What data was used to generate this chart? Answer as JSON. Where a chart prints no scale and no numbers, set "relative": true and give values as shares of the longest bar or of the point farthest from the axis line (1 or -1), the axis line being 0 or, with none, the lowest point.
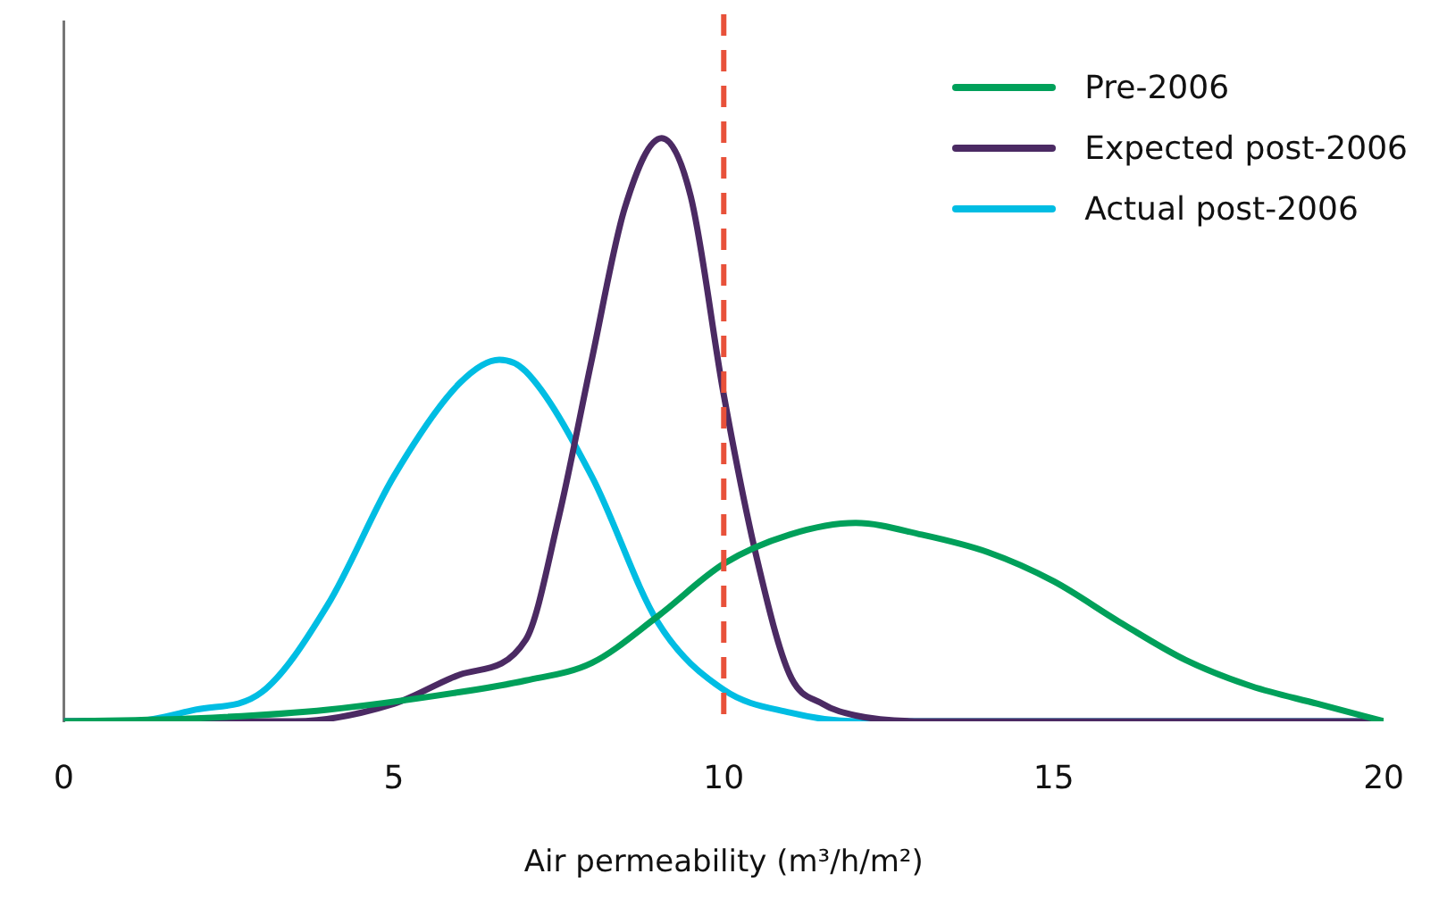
{
  "chart_data": {
    "type": "line",
    "relative": true,
    "xlabel": "Air permeability (m³/h/m²)",
    "xlim": [
      0,
      20
    ],
    "xticks": [
      0,
      5,
      10,
      15,
      20
    ],
    "tick_labels": "x",
    "grid": false,
    "legend": "top right",
    "marker": "none",
    "line_style": "solid",
    "ref_lines": [
      {
        "axis": "x",
        "value": 10,
        "color": "#e8513a",
        "line_style": "dashed"
      }
    ],
    "series": [
      {
        "name": "Pre-2006",
        "color": "#00a05a",
        "x": [
          0,
          2,
          4,
          6,
          7,
          8,
          9,
          10,
          11,
          12,
          13,
          14,
          15,
          16,
          17,
          18,
          19,
          20
        ],
        "values": [
          0,
          0.005,
          0.02,
          0.05,
          0.07,
          0.1,
          0.18,
          0.27,
          0.32,
          0.34,
          0.32,
          0.29,
          0.24,
          0.17,
          0.105,
          0.06,
          0.03,
          0
        ]
      },
      {
        "name": "Expected post-2006",
        "color": "#4b2a63",
        "x": [
          0,
          2,
          3.5,
          5,
          6,
          7,
          7.5,
          8,
          8.5,
          9.06,
          9.5,
          10,
          10.5,
          11,
          11.5,
          12,
          13,
          20
        ],
        "values": [
          0,
          0,
          0,
          0.03,
          0.08,
          0.14,
          0.35,
          0.62,
          0.88,
          1,
          0.9,
          0.56,
          0.28,
          0.08,
          0.03,
          0.01,
          0,
          0
        ]
      },
      {
        "name": "Actual post-2006",
        "color": "#00bde3",
        "x": [
          0,
          1,
          2,
          3,
          4,
          5,
          6,
          6.6,
          7,
          8,
          9,
          10,
          11,
          12,
          20
        ],
        "values": [
          0,
          0,
          0.02,
          0.05,
          0.2,
          0.42,
          0.58,
          0.62,
          0.6,
          0.42,
          0.17,
          0.054,
          0.015,
          0,
          0
        ]
      }
    ]
  }
}
